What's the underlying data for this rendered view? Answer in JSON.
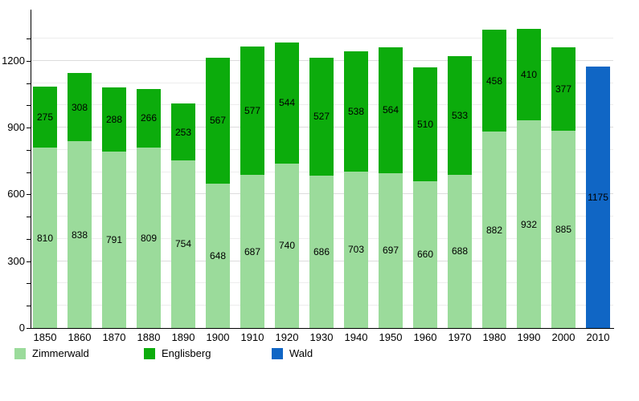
{
  "chart_data": {
    "type": "bar",
    "stacked": true,
    "title": "",
    "xlabel": "",
    "ylabel": "",
    "categories": [
      "1850",
      "1860",
      "1870",
      "1880",
      "1890",
      "1900",
      "1910",
      "1920",
      "1930",
      "1940",
      "1950",
      "1960",
      "1970",
      "1980",
      "1990",
      "2000",
      "2010"
    ],
    "series": [
      {
        "name": "Zimmerwald",
        "color": "#9BDB9B",
        "values": [
          810,
          838,
          791,
          809,
          754,
          648,
          687,
          740,
          686,
          703,
          697,
          660,
          688,
          882,
          932,
          885,
          null
        ]
      },
      {
        "name": "Englisberg",
        "color": "#0CAC0C",
        "values": [
          275,
          308,
          288,
          266,
          253,
          567,
          577,
          544,
          527,
          538,
          564,
          510,
          533,
          458,
          410,
          377,
          null
        ]
      },
      {
        "name": "Wald",
        "color": "#1066C5",
        "values": [
          null,
          null,
          null,
          null,
          null,
          null,
          null,
          null,
          null,
          null,
          null,
          null,
          null,
          null,
          null,
          null,
          1175
        ]
      }
    ],
    "ylim": [
      0,
      1430
    ],
    "yticks": [
      0,
      300,
      600,
      900,
      1200
    ],
    "yticklabels": [
      "0",
      "300",
      "600",
      "900",
      "1200"
    ],
    "minor_tick_step": 100,
    "grid": true,
    "value_labels_shown": true,
    "legend_position": "bottom"
  }
}
